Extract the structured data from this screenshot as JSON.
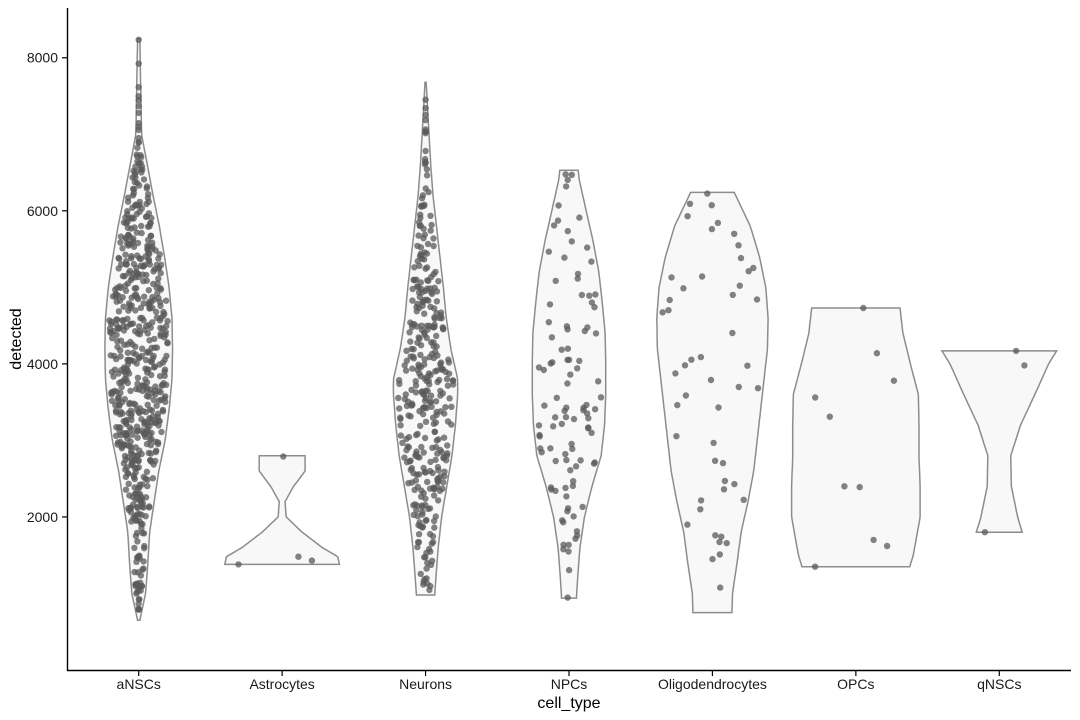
{
  "chart_data": {
    "type": "violin",
    "xlabel": "cell_type",
    "ylabel": "detected",
    "categories": [
      "aNSCs",
      "Astrocytes",
      "Neurons",
      "NPCs",
      "Oligodendrocytes",
      "OPCs",
      "qNSCs"
    ],
    "ylim": [
      0,
      8650
    ],
    "y_ticks": [
      2000,
      4000,
      6000,
      8000
    ],
    "y_tick_labels": [
      "2000",
      "4000",
      "6000",
      "8000"
    ],
    "grid": false,
    "legend": "none",
    "violins": [
      {
        "category": "aNSCs",
        "profile": [
          [
            650,
            0.02
          ],
          [
            1000,
            0.12
          ],
          [
            1400,
            0.16
          ],
          [
            1800,
            0.19
          ],
          [
            2200,
            0.27
          ],
          [
            2600,
            0.35
          ],
          [
            3000,
            0.46
          ],
          [
            3400,
            0.53
          ],
          [
            3800,
            0.58
          ],
          [
            4200,
            0.59
          ],
          [
            4600,
            0.58
          ],
          [
            5000,
            0.53
          ],
          [
            5400,
            0.45
          ],
          [
            5800,
            0.36
          ],
          [
            6200,
            0.25
          ],
          [
            6600,
            0.15
          ],
          [
            7000,
            0.05
          ],
          [
            7400,
            0.04
          ],
          [
            7800,
            0.03
          ],
          [
            8250,
            0.02
          ]
        ],
        "n_points": 620
      },
      {
        "category": "Astrocytes",
        "profile": [
          [
            1380,
            1.0
          ],
          [
            1480,
            0.97
          ],
          [
            1600,
            0.7
          ],
          [
            1800,
            0.35
          ],
          [
            2000,
            0.07
          ],
          [
            2200,
            0.05
          ],
          [
            2400,
            0.2
          ],
          [
            2600,
            0.4
          ],
          [
            2800,
            0.4
          ]
        ],
        "points": [
          1380,
          1430,
          1480,
          2790
        ],
        "n_points": 4
      },
      {
        "category": "Neurons",
        "profile": [
          [
            980,
            0.16
          ],
          [
            1200,
            0.18
          ],
          [
            1600,
            0.22
          ],
          [
            2000,
            0.28
          ],
          [
            2400,
            0.37
          ],
          [
            2800,
            0.46
          ],
          [
            3200,
            0.52
          ],
          [
            3600,
            0.56
          ],
          [
            3800,
            0.56
          ],
          [
            4200,
            0.44
          ],
          [
            4600,
            0.36
          ],
          [
            5000,
            0.31
          ],
          [
            5400,
            0.25
          ],
          [
            5800,
            0.19
          ],
          [
            6200,
            0.13
          ],
          [
            6600,
            0.09
          ],
          [
            7000,
            0.06
          ],
          [
            7400,
            0.03
          ],
          [
            7680,
            0.01
          ]
        ],
        "n_points": 360
      },
      {
        "category": "NPCs",
        "profile": [
          [
            940,
            0.13
          ],
          [
            1200,
            0.15
          ],
          [
            1600,
            0.19
          ],
          [
            2000,
            0.27
          ],
          [
            2400,
            0.4
          ],
          [
            2800,
            0.56
          ],
          [
            3200,
            0.62
          ],
          [
            3600,
            0.64
          ],
          [
            4000,
            0.64
          ],
          [
            4400,
            0.63
          ],
          [
            4800,
            0.58
          ],
          [
            5200,
            0.52
          ],
          [
            5600,
            0.42
          ],
          [
            6000,
            0.3
          ],
          [
            6400,
            0.18
          ],
          [
            6530,
            0.16
          ]
        ],
        "n_points": 100
      },
      {
        "category": "Oligodendrocytes",
        "profile": [
          [
            750,
            0.34
          ],
          [
            1000,
            0.35
          ],
          [
            1400,
            0.43
          ],
          [
            1800,
            0.5
          ],
          [
            2200,
            0.62
          ],
          [
            2600,
            0.72
          ],
          [
            3000,
            0.78
          ],
          [
            3400,
            0.84
          ],
          [
            3800,
            0.9
          ],
          [
            4200,
            0.96
          ],
          [
            4600,
            0.97
          ],
          [
            5000,
            0.93
          ],
          [
            5400,
            0.82
          ],
          [
            5800,
            0.66
          ],
          [
            6240,
            0.38
          ]
        ],
        "n_points": 50
      },
      {
        "category": "OPCs",
        "profile": [
          [
            1350,
            0.94
          ],
          [
            1500,
            1.0
          ],
          [
            1700,
            1.05
          ],
          [
            2000,
            1.12
          ],
          [
            2400,
            1.12
          ],
          [
            2800,
            1.1
          ],
          [
            3200,
            1.1
          ],
          [
            3600,
            1.09
          ],
          [
            4000,
            0.95
          ],
          [
            4400,
            0.82
          ],
          [
            4730,
            0.77
          ]
        ],
        "points": [
          1350,
          1620,
          1700,
          2390,
          2400,
          3310,
          3560,
          3780,
          4140,
          4730
        ],
        "n_points": 10
      },
      {
        "category": "qNSCs",
        "profile": [
          [
            1800,
            0.4
          ],
          [
            2000,
            0.32
          ],
          [
            2400,
            0.21
          ],
          [
            2800,
            0.2
          ],
          [
            3200,
            0.37
          ],
          [
            3600,
            0.62
          ],
          [
            4000,
            0.86
          ],
          [
            4170,
            1.0
          ]
        ],
        "points": [
          1800,
          3980,
          4170
        ],
        "n_points": 3
      }
    ]
  }
}
